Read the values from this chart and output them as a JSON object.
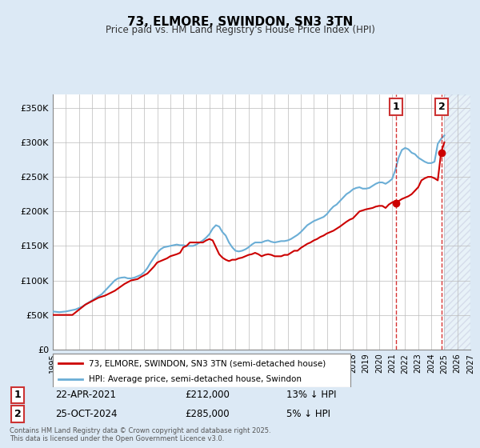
{
  "title": "73, ELMORE, SWINDON, SN3 3TN",
  "subtitle": "Price paid vs. HM Land Registry's House Price Index (HPI)",
  "xlabel": "",
  "ylabel": "",
  "ylim": [
    0,
    370000
  ],
  "xlim_start": 1995.0,
  "xlim_end": 2027.0,
  "yticks": [
    0,
    50000,
    100000,
    150000,
    200000,
    250000,
    300000,
    350000
  ],
  "ytick_labels": [
    "£0",
    "£50K",
    "£100K",
    "£150K",
    "£200K",
    "£250K",
    "£300K",
    "£350K"
  ],
  "xticks": [
    1995,
    1996,
    1997,
    1998,
    1999,
    2000,
    2001,
    2002,
    2003,
    2004,
    2005,
    2006,
    2007,
    2008,
    2009,
    2010,
    2011,
    2012,
    2013,
    2014,
    2015,
    2016,
    2017,
    2018,
    2019,
    2020,
    2021,
    2022,
    2023,
    2024,
    2025,
    2026,
    2027
  ],
  "hpi_color": "#6baed6",
  "price_color": "#cc0000",
  "background_color": "#dce9f5",
  "plot_bg_color": "#ffffff",
  "grid_color": "#bbbbbb",
  "hatch_color": "#c8d8ee",
  "sale1_x": 2021.31,
  "sale1_y": 212000,
  "sale1_label": "1",
  "sale1_date": "22-APR-2021",
  "sale1_price": "£212,000",
  "sale1_hpi": "13% ↓ HPI",
  "sale2_x": 2024.81,
  "sale2_y": 285000,
  "sale2_label": "2",
  "sale2_date": "25-OCT-2024",
  "sale2_price": "£285,000",
  "sale2_hpi": "5% ↓ HPI",
  "legend1": "73, ELMORE, SWINDON, SN3 3TN (semi-detached house)",
  "legend2": "HPI: Average price, semi-detached house, Swindon",
  "footer": "Contains HM Land Registry data © Crown copyright and database right 2025.\nThis data is licensed under the Open Government Licence v3.0.",
  "hpi_data_x": [
    1995.0,
    1995.25,
    1995.5,
    1995.75,
    1996.0,
    1996.25,
    1996.5,
    1996.75,
    1997.0,
    1997.25,
    1997.5,
    1997.75,
    1998.0,
    1998.25,
    1998.5,
    1998.75,
    1999.0,
    1999.25,
    1999.5,
    1999.75,
    2000.0,
    2000.25,
    2000.5,
    2000.75,
    2001.0,
    2001.25,
    2001.5,
    2001.75,
    2002.0,
    2002.25,
    2002.5,
    2002.75,
    2003.0,
    2003.25,
    2003.5,
    2003.75,
    2004.0,
    2004.25,
    2004.5,
    2004.75,
    2005.0,
    2005.25,
    2005.5,
    2005.75,
    2006.0,
    2006.25,
    2006.5,
    2006.75,
    2007.0,
    2007.25,
    2007.5,
    2007.75,
    2008.0,
    2008.25,
    2008.5,
    2008.75,
    2009.0,
    2009.25,
    2009.5,
    2009.75,
    2010.0,
    2010.25,
    2010.5,
    2010.75,
    2011.0,
    2011.25,
    2011.5,
    2011.75,
    2012.0,
    2012.25,
    2012.5,
    2012.75,
    2013.0,
    2013.25,
    2013.5,
    2013.75,
    2014.0,
    2014.25,
    2014.5,
    2014.75,
    2015.0,
    2015.25,
    2015.5,
    2015.75,
    2016.0,
    2016.25,
    2016.5,
    2016.75,
    2017.0,
    2017.25,
    2017.5,
    2017.75,
    2018.0,
    2018.25,
    2018.5,
    2018.75,
    2019.0,
    2019.25,
    2019.5,
    2019.75,
    2020.0,
    2020.25,
    2020.5,
    2020.75,
    2021.0,
    2021.25,
    2021.5,
    2021.75,
    2022.0,
    2022.25,
    2022.5,
    2022.75,
    2023.0,
    2023.25,
    2023.5,
    2023.75,
    2024.0,
    2024.25,
    2024.5,
    2024.75,
    2025.0
  ],
  "hpi_data_y": [
    55000,
    54500,
    54000,
    54500,
    55000,
    56000,
    57000,
    58000,
    60000,
    62000,
    65000,
    68000,
    71000,
    74000,
    77000,
    80000,
    85000,
    90000,
    95000,
    100000,
    103000,
    104000,
    104500,
    103000,
    103000,
    104000,
    106000,
    108000,
    112000,
    118000,
    126000,
    133000,
    140000,
    145000,
    148000,
    149000,
    150000,
    151000,
    152000,
    151000,
    151000,
    150000,
    150000,
    150000,
    152000,
    155000,
    158000,
    162000,
    167000,
    175000,
    180000,
    178000,
    170000,
    165000,
    155000,
    148000,
    143000,
    142000,
    143000,
    145000,
    148000,
    152000,
    155000,
    155000,
    155000,
    157000,
    158000,
    156000,
    155000,
    156000,
    157000,
    157000,
    158000,
    160000,
    163000,
    166000,
    170000,
    175000,
    180000,
    183000,
    186000,
    188000,
    190000,
    192000,
    196000,
    202000,
    207000,
    210000,
    215000,
    220000,
    225000,
    228000,
    232000,
    234000,
    235000,
    233000,
    233000,
    234000,
    237000,
    240000,
    242000,
    242000,
    240000,
    243000,
    247000,
    260000,
    278000,
    289000,
    292000,
    290000,
    285000,
    283000,
    278000,
    275000,
    272000,
    270000,
    270000,
    272000,
    298000,
    305000,
    310000
  ],
  "price_data_x": [
    1995.0,
    1995.5,
    1996.5,
    1997.5,
    1998.5,
    1999.0,
    1999.75,
    2000.5,
    2001.0,
    2001.5,
    2001.75,
    2002.25,
    2002.75,
    2003.0,
    2003.25,
    2003.5,
    2003.75,
    2004.0,
    2004.5,
    2004.75,
    2005.0,
    2005.25,
    2005.5,
    2005.75,
    2006.0,
    2006.5,
    2006.75,
    2007.0,
    2007.25,
    2007.5,
    2007.75,
    2008.0,
    2008.25,
    2008.5,
    2008.75,
    2009.0,
    2009.25,
    2009.5,
    2009.75,
    2010.0,
    2010.25,
    2010.5,
    2010.75,
    2011.0,
    2011.25,
    2011.5,
    2011.75,
    2012.0,
    2012.25,
    2012.5,
    2012.75,
    2013.0,
    2013.25,
    2013.5,
    2013.75,
    2014.0,
    2014.25,
    2014.5,
    2014.75,
    2015.0,
    2015.25,
    2015.5,
    2015.75,
    2016.0,
    2016.5,
    2016.75,
    2017.0,
    2017.5,
    2017.75,
    2018.0,
    2018.5,
    2019.0,
    2019.5,
    2019.75,
    2020.0,
    2020.25,
    2020.5,
    2020.75,
    2021.0,
    2021.25,
    2021.5,
    2021.75,
    2022.0,
    2022.25,
    2022.5,
    2022.75,
    2023.0,
    2023.25,
    2023.5,
    2023.75,
    2024.0,
    2024.25,
    2024.5,
    2024.75,
    2025.0
  ],
  "price_data_y": [
    50000,
    50000,
    50000,
    65000,
    75000,
    78000,
    85000,
    95000,
    100000,
    102000,
    105000,
    110000,
    120000,
    126000,
    128000,
    130000,
    132000,
    135000,
    138000,
    140000,
    148000,
    150000,
    155000,
    155000,
    155000,
    155000,
    158000,
    160000,
    158000,
    148000,
    138000,
    133000,
    130000,
    128000,
    130000,
    130000,
    132000,
    133000,
    135000,
    137000,
    138000,
    140000,
    138000,
    135000,
    137000,
    138000,
    137000,
    135000,
    135000,
    135000,
    137000,
    137000,
    140000,
    143000,
    143000,
    147000,
    150000,
    153000,
    155000,
    158000,
    160000,
    163000,
    165000,
    168000,
    172000,
    175000,
    178000,
    185000,
    188000,
    190000,
    200000,
    203000,
    205000,
    207000,
    208000,
    208000,
    205000,
    210000,
    213000,
    215000,
    215000,
    218000,
    220000,
    222000,
    225000,
    230000,
    235000,
    245000,
    248000,
    250000,
    250000,
    248000,
    245000,
    285000,
    300000
  ]
}
